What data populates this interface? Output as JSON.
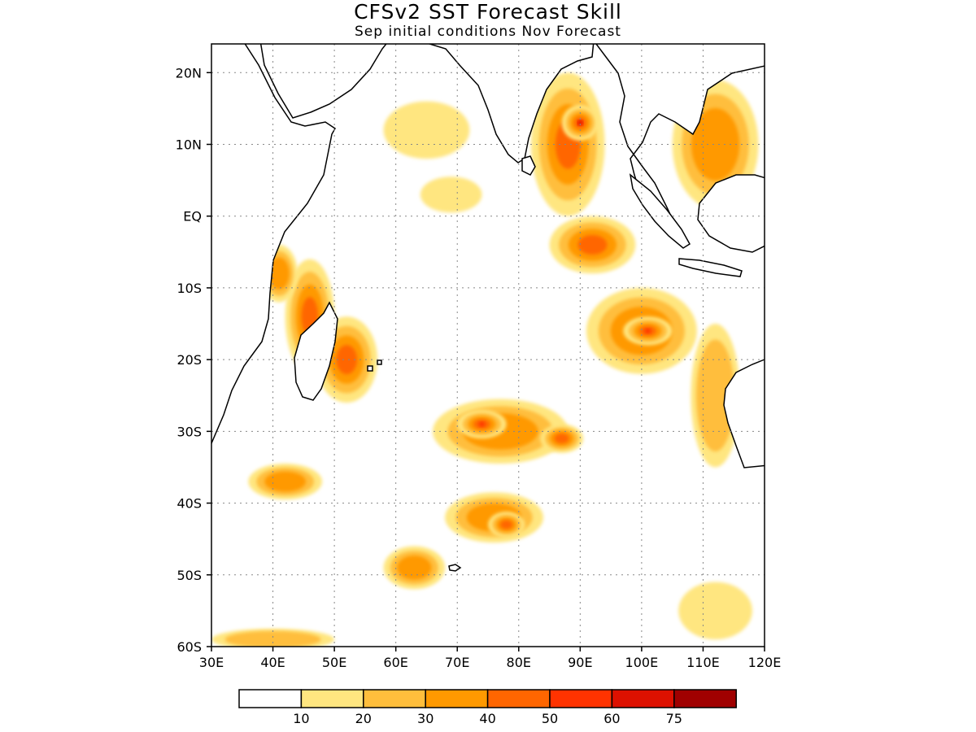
{
  "title": "CFSv2 SST Forecast Skill",
  "subtitle": "Sep initial conditions  Nov Forecast",
  "map": {
    "region": {
      "lon_min": 30,
      "lon_max": 120,
      "lat_min": -60,
      "lat_max": 24
    },
    "grid": true,
    "x_ticks": [
      "30E",
      "40E",
      "50E",
      "60E",
      "70E",
      "80E",
      "90E",
      "100E",
      "110E",
      "120E"
    ],
    "y_ticks": [
      "20N",
      "10N",
      "EQ",
      "10S",
      "20S",
      "30S",
      "40S",
      "50S",
      "60S"
    ],
    "colors": {
      "land_outline": "#000000",
      "ocean": "#ffffff"
    }
  },
  "legend": {
    "colors": [
      "#ffffff",
      "#ffe680",
      "#ffbe3c",
      "#ff9900",
      "#ff6600",
      "#ff3300",
      "#dd1100",
      "#a00000"
    ],
    "labels": [
      "10",
      "20",
      "30",
      "40",
      "50",
      "60",
      "75"
    ]
  },
  "skill_regions": [
    {
      "id": "arabian-sea-west",
      "lon": 65,
      "lat": 12,
      "rx": 7,
      "ry": 4,
      "level": 1
    },
    {
      "id": "arabian-sea-south",
      "lon": 69,
      "lat": 3,
      "rx": 5,
      "ry": 2.5,
      "level": 1
    },
    {
      "id": "bay-of-bengal",
      "lon": 88,
      "lat": 10,
      "rx": 6,
      "ry": 10,
      "level": 4
    },
    {
      "id": "bay-of-bengal-core",
      "lon": 90,
      "lat": 13,
      "rx": 3,
      "ry": 2.5,
      "level": 6
    },
    {
      "id": "sumatra-west",
      "lon": 92,
      "lat": -4,
      "rx": 7,
      "ry": 4,
      "level": 4
    },
    {
      "id": "south-china-sea",
      "lon": 112,
      "lat": 10,
      "rx": 7,
      "ry": 9,
      "level": 3
    },
    {
      "id": "madagascar-channel",
      "lon": 46,
      "lat": -14,
      "rx": 4,
      "ry": 8,
      "level": 4
    },
    {
      "id": "mozambique-north",
      "lon": 41,
      "lat": -8,
      "rx": 3,
      "ry": 4,
      "level": 3
    },
    {
      "id": "mascarene",
      "lon": 52,
      "lat": -20,
      "rx": 5,
      "ry": 6,
      "level": 4
    },
    {
      "id": "south-ind-central",
      "lon": 77,
      "lat": -30,
      "rx": 11,
      "ry": 4.5,
      "level": 3
    },
    {
      "id": "south-ind-core-1",
      "lon": 74,
      "lat": -29,
      "rx": 4,
      "ry": 2,
      "level": 5
    },
    {
      "id": "south-ind-core-2",
      "lon": 87,
      "lat": -31,
      "rx": 3.5,
      "ry": 2,
      "level": 4
    },
    {
      "id": "southeast-ind",
      "lon": 100,
      "lat": -16,
      "rx": 9,
      "ry": 6,
      "level": 3
    },
    {
      "id": "southeast-ind-core",
      "lon": 101,
      "lat": -16,
      "rx": 4,
      "ry": 2,
      "level": 5
    },
    {
      "id": "agulhas",
      "lon": 42,
      "lat": -37,
      "rx": 6,
      "ry": 2.5,
      "level": 3
    },
    {
      "id": "kerguelen-north",
      "lon": 76,
      "lat": -42,
      "rx": 8,
      "ry": 3.5,
      "level": 3
    },
    {
      "id": "kerguelen-core",
      "lon": 78,
      "lat": -43,
      "rx": 3,
      "ry": 1.8,
      "level": 4
    },
    {
      "id": "crozet",
      "lon": 63,
      "lat": -49,
      "rx": 5,
      "ry": 3,
      "level": 3
    },
    {
      "id": "australia-west",
      "lon": 112,
      "lat": -25,
      "rx": 4,
      "ry": 10,
      "level": 2
    },
    {
      "id": "southern-ocean-east",
      "lon": 112,
      "lat": -55,
      "rx": 6,
      "ry": 4,
      "level": 1
    },
    {
      "id": "southern-ocean-west",
      "lon": 40,
      "lat": -59,
      "rx": 10,
      "ry": 1.5,
      "level": 2
    }
  ]
}
